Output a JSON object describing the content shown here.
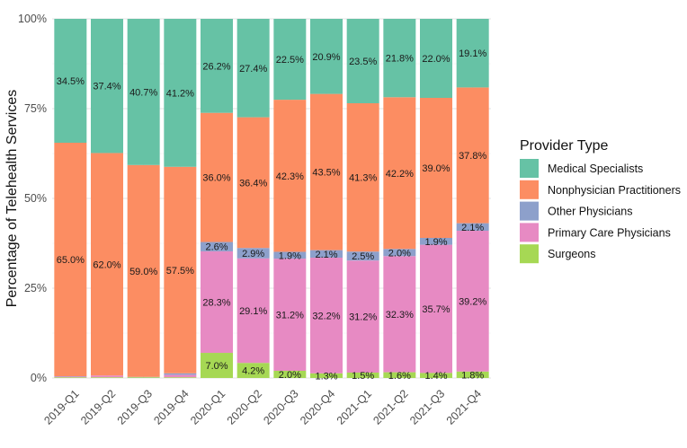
{
  "chart_data": {
    "type": "bar",
    "stacked": true,
    "normalized": true,
    "categories": [
      "2019-Q1",
      "2019-Q2",
      "2019-Q3",
      "2019-Q4",
      "2020-Q1",
      "2020-Q2",
      "2020-Q3",
      "2020-Q4",
      "2021-Q1",
      "2021-Q2",
      "2021-Q3",
      "2021-Q4"
    ],
    "ylabel": "Percentage of Telehealth Services",
    "xlabel": "",
    "ylim": [
      0,
      100
    ],
    "yticks": [
      "0%",
      "25%",
      "50%",
      "75%",
      "100%"
    ],
    "ytick_values": [
      0,
      25,
      50,
      75,
      100
    ],
    "grid": true,
    "legend": {
      "title": "Provider Type",
      "position": "right"
    },
    "series": [
      {
        "name": "Surgeons",
        "color": "#A6D854",
        "values": [
          0.2,
          0.2,
          0.2,
          0.2,
          7.0,
          4.2,
          2.0,
          1.3,
          1.5,
          1.6,
          1.4,
          1.8
        ],
        "labels": [
          "",
          "",
          "",
          "",
          "7.0%",
          "4.2%",
          "2.0%",
          "1.3%",
          "1.5%",
          "1.6%",
          "1.4%",
          "1.8%"
        ]
      },
      {
        "name": "Primary Care Physicians",
        "color": "#E78AC3",
        "values": [
          0.2,
          0.5,
          0.0,
          0.7,
          28.3,
          29.1,
          31.2,
          32.2,
          31.2,
          32.3,
          35.7,
          39.2
        ],
        "labels": [
          "",
          "",
          "",
          "",
          "28.3%",
          "29.1%",
          "31.2%",
          "32.2%",
          "31.2%",
          "32.3%",
          "35.7%",
          "39.2%"
        ]
      },
      {
        "name": "Other Physicians",
        "color": "#8DA0CB",
        "values": [
          0.1,
          0.0,
          0.1,
          0.4,
          2.6,
          2.9,
          1.9,
          2.1,
          2.5,
          2.0,
          1.9,
          2.1
        ],
        "labels": [
          "",
          "",
          "",
          "",
          "2.6%",
          "2.9%",
          "1.9%",
          "2.1%",
          "2.5%",
          "2.0%",
          "1.9%",
          "2.1%"
        ]
      },
      {
        "name": "Nonphysician Practitioners",
        "color": "#FC8D62",
        "values": [
          65.0,
          62.0,
          59.0,
          57.5,
          36.0,
          36.4,
          42.3,
          43.5,
          41.3,
          42.2,
          39.0,
          37.8
        ],
        "labels": [
          "65.0%",
          "62.0%",
          "59.0%",
          "57.5%",
          "36.0%",
          "36.4%",
          "42.3%",
          "43.5%",
          "41.3%",
          "42.2%",
          "39.0%",
          "37.8%"
        ]
      },
      {
        "name": "Medical Specialists",
        "color": "#66C2A5",
        "values": [
          34.5,
          37.4,
          40.7,
          41.2,
          26.2,
          27.4,
          22.5,
          20.9,
          23.5,
          21.8,
          22.0,
          19.1
        ],
        "labels": [
          "34.5%",
          "37.4%",
          "40.7%",
          "41.2%",
          "26.2%",
          "27.4%",
          "22.5%",
          "20.9%",
          "23.5%",
          "21.8%",
          "22.0%",
          "19.1%"
        ]
      }
    ],
    "legend_order": [
      "Medical Specialists",
      "Nonphysician Practitioners",
      "Other Physicians",
      "Primary Care Physicians",
      "Surgeons"
    ]
  }
}
